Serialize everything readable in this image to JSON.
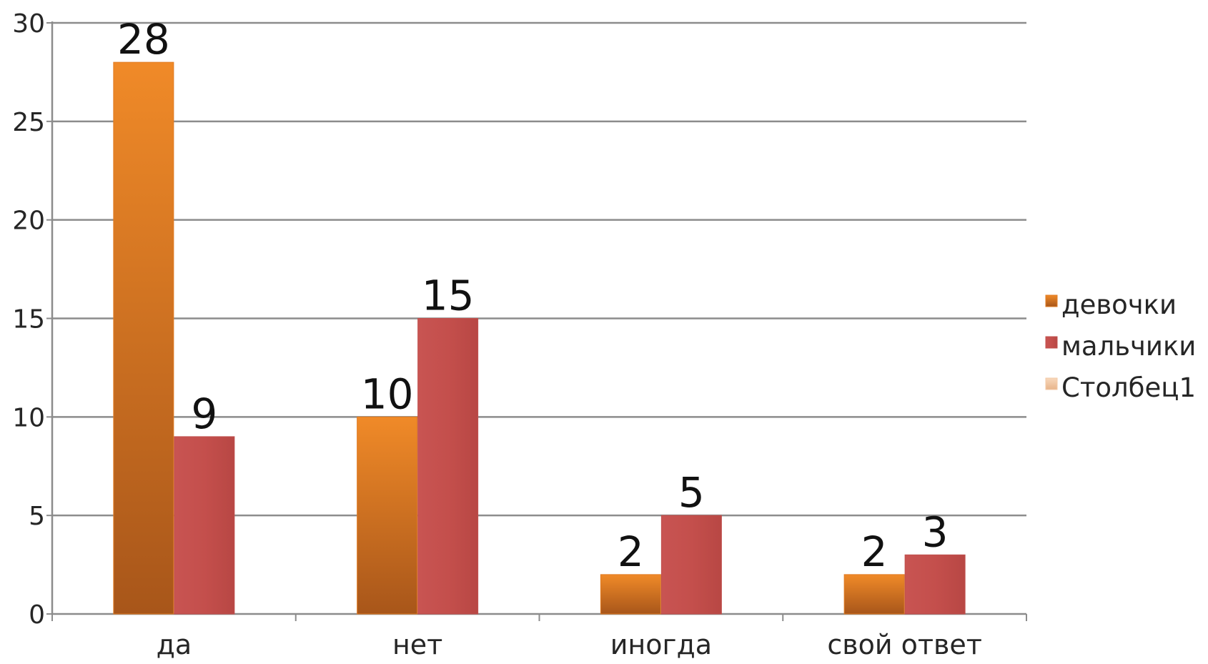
{
  "chart_data": {
    "type": "bar",
    "categories": [
      "да",
      "нет",
      "иногда",
      "свой ответ"
    ],
    "series": [
      {
        "name": "девочки",
        "values": [
          28,
          10,
          2,
          2
        ],
        "color": "#E07B22"
      },
      {
        "name": "мальчики",
        "values": [
          9,
          15,
          5,
          3
        ],
        "color": "#C0504D"
      },
      {
        "name": "Столбец1",
        "values": [
          null,
          null,
          null,
          null
        ],
        "color": "#F3C9A6"
      }
    ],
    "title": "",
    "xlabel": "",
    "ylabel": "",
    "ylim": [
      0,
      30
    ],
    "yticks": [
      0,
      5,
      10,
      15,
      20,
      25,
      30
    ],
    "grid": true,
    "legend_position": "right",
    "data_labels": true
  }
}
